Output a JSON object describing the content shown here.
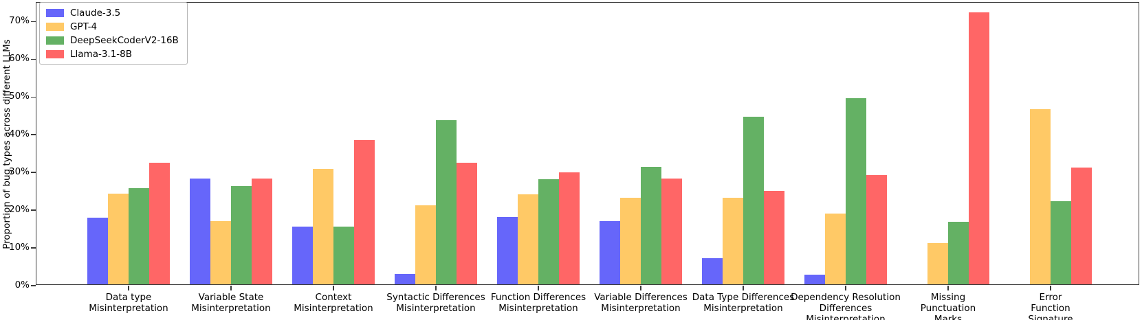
{
  "chart_data": {
    "type": "bar",
    "title": "",
    "xlabel": "",
    "ylabel": "Proportion of bug types across different LLMs",
    "ylim": [
      0,
      75
    ],
    "grid": false,
    "legend_position": "upper left",
    "yticks": [
      {
        "value": 0,
        "label": "0%"
      },
      {
        "value": 10,
        "label": "10%"
      },
      {
        "value": 20,
        "label": "20%"
      },
      {
        "value": 30,
        "label": "30%"
      },
      {
        "value": 40,
        "label": "40%"
      },
      {
        "value": 50,
        "label": "50%"
      },
      {
        "value": 60,
        "label": "60%"
      },
      {
        "value": 70,
        "label": "70%"
      }
    ],
    "categories": [
      "Data type\nMisinterpretation",
      "Variable State\nMisinterpretation",
      "Context\nMisinterpretation",
      "Syntactic Differences\nMisinterpretation",
      "Function Differences\nMisinterpretation",
      "Variable Differences\nMisinterpretation",
      "Data Type Differences\nMisinterpretation",
      "Dependency Resolution\nDifferences\nMisinterpretation",
      "Missing\nPunctuation\nMarks",
      "Error\nFunction\nSignature"
    ],
    "series": [
      {
        "name": "Claude-3.5",
        "color": "#6666fa",
        "values": [
          17.6,
          28.1,
          15.3,
          2.8,
          17.8,
          16.8,
          7.0,
          2.5,
          0,
          0
        ]
      },
      {
        "name": "GPT-4",
        "color": "#ffc966",
        "values": [
          24.0,
          16.8,
          30.6,
          20.9,
          23.8,
          23.0,
          23.0,
          18.8,
          10.9,
          46.5
        ]
      },
      {
        "name": "DeepSeekCoderV2-16B",
        "color": "#64b164",
        "values": [
          25.4,
          26.1,
          15.3,
          43.5,
          27.8,
          31.2,
          44.5,
          49.3,
          16.5,
          22.1
        ]
      },
      {
        "name": "Llama-3.1-8B",
        "color": "#ff6666",
        "values": [
          32.3,
          28.1,
          38.3,
          32.2,
          29.6,
          28.1,
          24.8,
          29.0,
          72.1,
          31.0
        ]
      }
    ]
  }
}
